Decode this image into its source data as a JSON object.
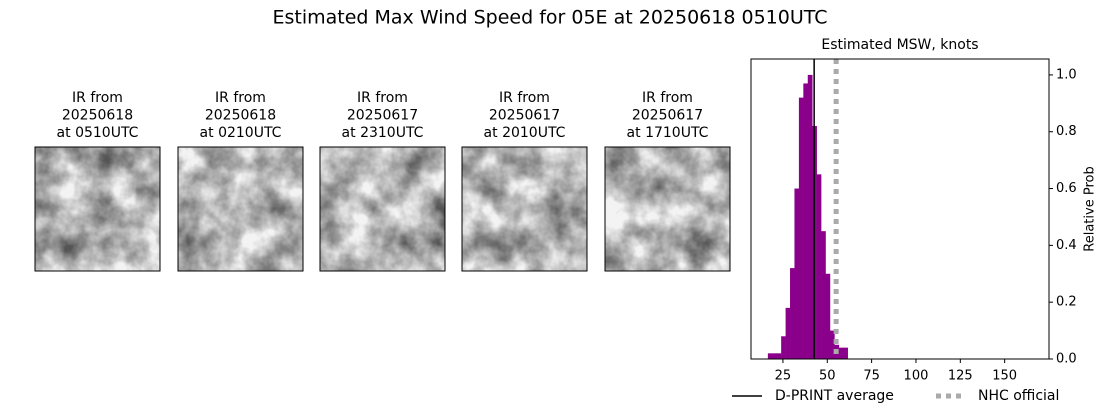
{
  "page_title": "Estimated Max Wind Speed for 05E at 20250618 0510UTC",
  "panels": [
    {
      "lines": [
        "IR from",
        "20250618",
        "at 0510UTC"
      ]
    },
    {
      "lines": [
        "IR from",
        "20250618",
        "at 0210UTC"
      ]
    },
    {
      "lines": [
        "IR from",
        "20250617",
        "at 2310UTC"
      ]
    },
    {
      "lines": [
        "IR from",
        "20250617",
        "at 2010UTC"
      ]
    },
    {
      "lines": [
        "IR from",
        "20250617",
        "at 1710UTC"
      ]
    }
  ],
  "chart_data": {
    "type": "histogram",
    "title": "Estimated MSW, knots",
    "ylabel": "Relative Prob",
    "color": "#8b008b",
    "bins": [
      16.5,
      19,
      21.5,
      24,
      26.5,
      29,
      31.5,
      34,
      36.5,
      39,
      41.5,
      44,
      46.5,
      49,
      51.5,
      54,
      56.5,
      59,
      61.5
    ],
    "values": [
      0.02,
      0.02,
      0.02,
      0.08,
      0.18,
      0.32,
      0.6,
      0.92,
      0.97,
      1.0,
      0.82,
      0.65,
      0.45,
      0.3,
      0.1,
      0.05,
      0.04,
      0.04
    ],
    "xlim": [
      7,
      175
    ],
    "ylim": [
      0,
      1.056
    ],
    "xticks": [
      25,
      50,
      75,
      100,
      125,
      150
    ],
    "yticks": [
      {
        "value": 0,
        "label": "0.0"
      },
      {
        "value": 0.2,
        "label": "0.2"
      },
      {
        "value": 0.4,
        "label": "0.4"
      },
      {
        "value": 0.6,
        "label": "0.6"
      },
      {
        "value": 0.8,
        "label": "0.8"
      },
      {
        "value": 1.0,
        "label": "1.0"
      }
    ],
    "lines": [
      {
        "name": "D-PRINT average",
        "value": 42.6,
        "color": "#000000"
      },
      {
        "name": "NHC official",
        "value": 55,
        "color": "#aaaaaa"
      }
    ]
  }
}
